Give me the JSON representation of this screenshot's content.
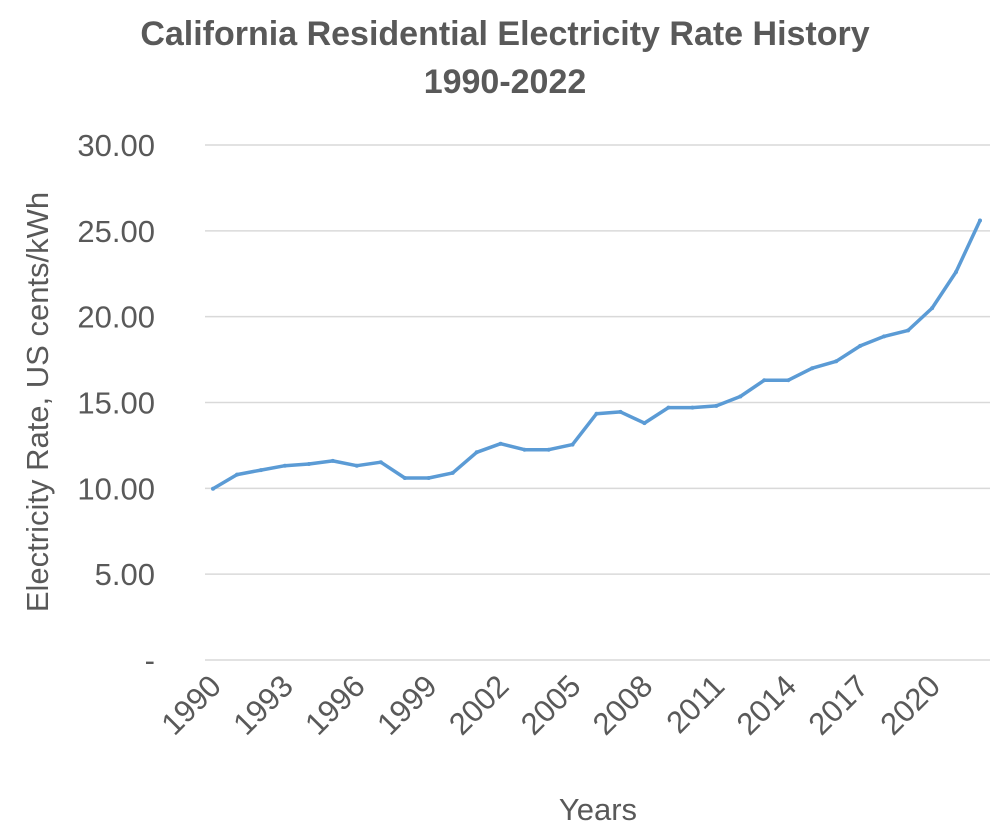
{
  "chart_data": {
    "type": "line",
    "title": "California Residential Electricity Rate History",
    "subtitle": "1990-2022",
    "xlabel": "Years",
    "ylabel": "Electricity Rate, US cents/kWh",
    "ylim": [
      0,
      30
    ],
    "y_ticks": [
      "-",
      "5.00",
      "10.00",
      "15.00",
      "20.00",
      "25.00",
      "30.00"
    ],
    "x_tick_labels": [
      "1990",
      "1993",
      "1996",
      "1999",
      "2002",
      "2005",
      "2008",
      "2011",
      "2014",
      "2017",
      "2020"
    ],
    "grid": true,
    "legend": "none",
    "series": [
      {
        "color": "#5b9bd5",
        "x": [
          1990,
          1991,
          1992,
          1993,
          1994,
          1995,
          1996,
          1997,
          1998,
          1999,
          2000,
          2001,
          2002,
          2003,
          2004,
          2005,
          2006,
          2007,
          2008,
          2009,
          2010,
          2011,
          2012,
          2013,
          2014,
          2015,
          2016,
          2017,
          2018,
          2019,
          2020,
          2021,
          2022
        ],
        "values": [
          9.98,
          10.8,
          11.06,
          11.32,
          11.42,
          11.6,
          11.32,
          11.52,
          10.6,
          10.6,
          10.9,
          12.1,
          12.6,
          12.25,
          12.25,
          12.55,
          14.35,
          14.45,
          13.8,
          14.7,
          14.7,
          14.8,
          15.35,
          16.3,
          16.3,
          17.0,
          17.4,
          18.3,
          18.85,
          19.2,
          20.5,
          22.6,
          25.6
        ]
      }
    ]
  }
}
